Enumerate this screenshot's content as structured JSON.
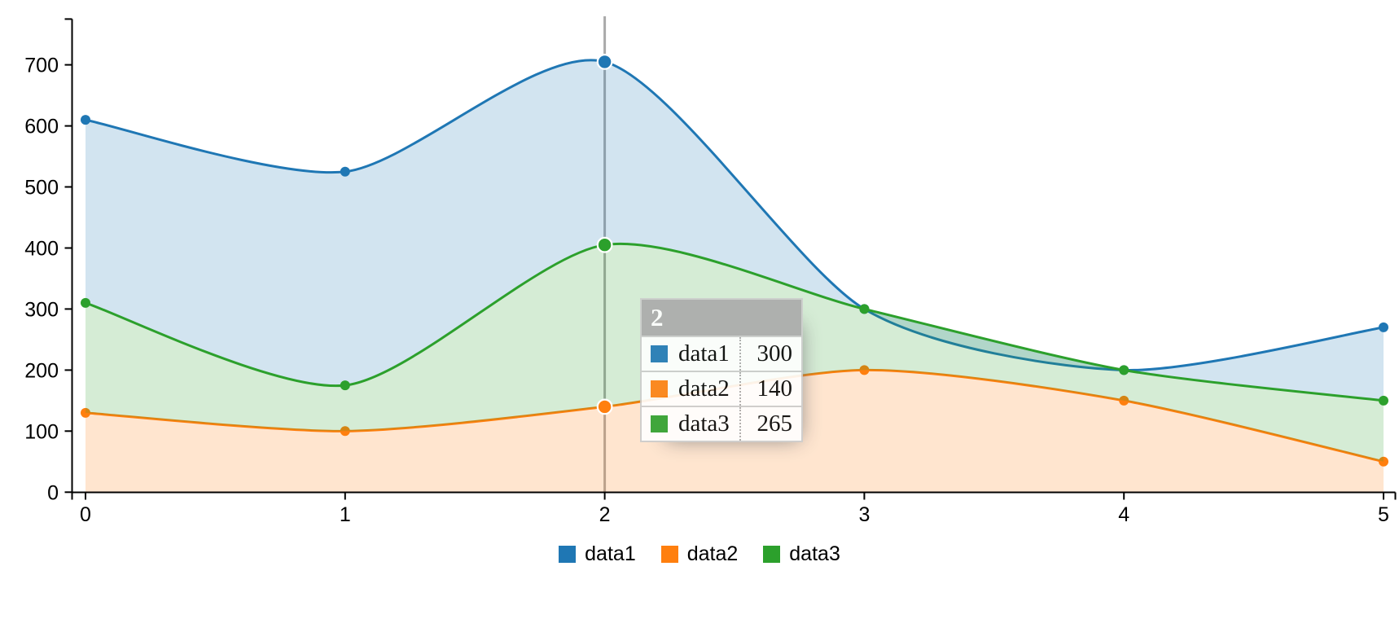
{
  "chart_data": {
    "type": "area",
    "variant": "stacked-area-spline",
    "title": "",
    "xlabel": "",
    "ylabel": "",
    "x": [
      0,
      1,
      2,
      3,
      4,
      5
    ],
    "series": [
      {
        "name": "data1",
        "color": "#1f77b4",
        "values": [
          300,
          350,
          300,
          0,
          0,
          120
        ]
      },
      {
        "name": "data2",
        "color": "#ff7f0e",
        "values": [
          130,
          100,
          140,
          200,
          150,
          50
        ]
      },
      {
        "name": "data3",
        "color": "#2ca02c",
        "values": [
          180,
          75,
          265,
          100,
          50,
          100
        ]
      }
    ],
    "stack_order": [
      "data2",
      "data3",
      "data1"
    ],
    "stacked_totals": {
      "data2": [
        130,
        100,
        140,
        200,
        150,
        50
      ],
      "data3": [
        310,
        175,
        405,
        300,
        200,
        150
      ],
      "data1": [
        610,
        525,
        705,
        300,
        200,
        270
      ]
    },
    "x_ticks": [
      "0",
      "1",
      "2",
      "3",
      "4",
      "5"
    ],
    "y_ticks": [
      "0",
      "100",
      "200",
      "300",
      "400",
      "500",
      "600",
      "700"
    ],
    "y_tick_values": [
      0,
      100,
      200,
      300,
      400,
      500,
      600,
      700
    ],
    "ylim": [
      0,
      775
    ],
    "grid": false,
    "legend_position": "bottom",
    "focus_x": 2,
    "area_fill_opacity": 0.2
  },
  "tooltip": {
    "title": "2",
    "rows": [
      {
        "name": "data1",
        "value": "300",
        "color": "#1f77b4"
      },
      {
        "name": "data2",
        "value": "140",
        "color": "#ff7f0e"
      },
      {
        "name": "data3",
        "value": "265",
        "color": "#2ca02c"
      }
    ]
  },
  "legend": {
    "items": [
      {
        "label": "data1",
        "color": "#1f77b4"
      },
      {
        "label": "data2",
        "color": "#ff7f0e"
      },
      {
        "label": "data3",
        "color": "#2ca02c"
      }
    ]
  },
  "colors": {
    "focus_line": "#aaaaaa",
    "axis": "#000000",
    "tick_label": "#000000",
    "tooltip_border": "#cccccc",
    "tooltip_header_bg": "#aaaaaa",
    "point_focus_ring": "#ffffff",
    "background": "#ffffff"
  }
}
